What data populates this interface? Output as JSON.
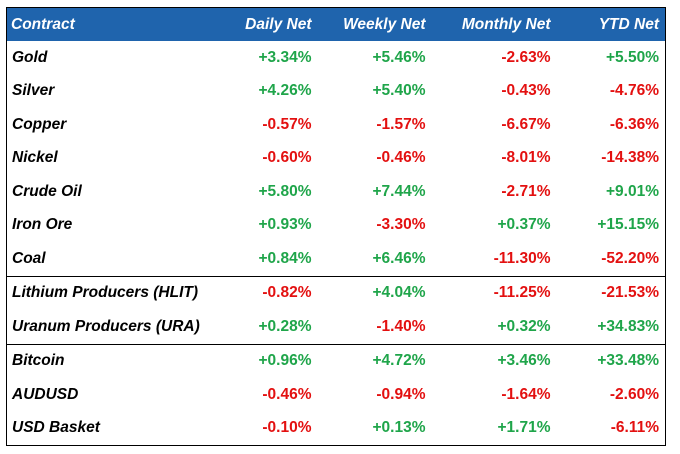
{
  "headers": [
    "Contract",
    "Daily Net",
    "Weekly Net",
    "Monthly Net",
    "YTD Net"
  ],
  "colors": {
    "header_bg": "#1f64ad",
    "positive": "#1fa54a",
    "negative": "#e31010"
  },
  "rows": [
    {
      "name": "Gold",
      "values": [
        "+3.34%",
        "+5.46%",
        "-2.63%",
        "+5.50%"
      ]
    },
    {
      "name": "Silver",
      "values": [
        "+4.26%",
        "+5.40%",
        "-0.43%",
        "-4.76%"
      ]
    },
    {
      "name": "Copper",
      "values": [
        "-0.57%",
        "-1.57%",
        "-6.67%",
        "-6.36%"
      ]
    },
    {
      "name": "Nickel",
      "values": [
        "-0.60%",
        "-0.46%",
        "-8.01%",
        "-14.38%"
      ]
    },
    {
      "name": "Crude Oil",
      "values": [
        "+5.80%",
        "+7.44%",
        "-2.71%",
        "+9.01%"
      ]
    },
    {
      "name": "Iron Ore",
      "values": [
        "+0.93%",
        "-3.30%",
        "+0.37%",
        "+15.15%"
      ]
    },
    {
      "name": "Coal",
      "values": [
        "+0.84%",
        "+6.46%",
        "-11.30%",
        "-52.20%"
      ]
    },
    {
      "name": "Lithium Producers (HLIT)",
      "values": [
        "-0.82%",
        "+4.04%",
        "-11.25%",
        "-21.53%"
      ]
    },
    {
      "name": "Uranum Producers (URA)",
      "values": [
        "+0.28%",
        "-1.40%",
        "+0.32%",
        "+34.83%"
      ]
    },
    {
      "name": "Bitcoin",
      "values": [
        "+0.96%",
        "+4.72%",
        "+3.46%",
        "+33.48%"
      ]
    },
    {
      "name": "AUDUSD",
      "values": [
        "-0.46%",
        "-0.94%",
        "-1.64%",
        "-2.60%"
      ]
    },
    {
      "name": "USD Basket",
      "values": [
        "-0.10%",
        "+0.13%",
        "+1.71%",
        "-6.11%"
      ]
    }
  ]
}
